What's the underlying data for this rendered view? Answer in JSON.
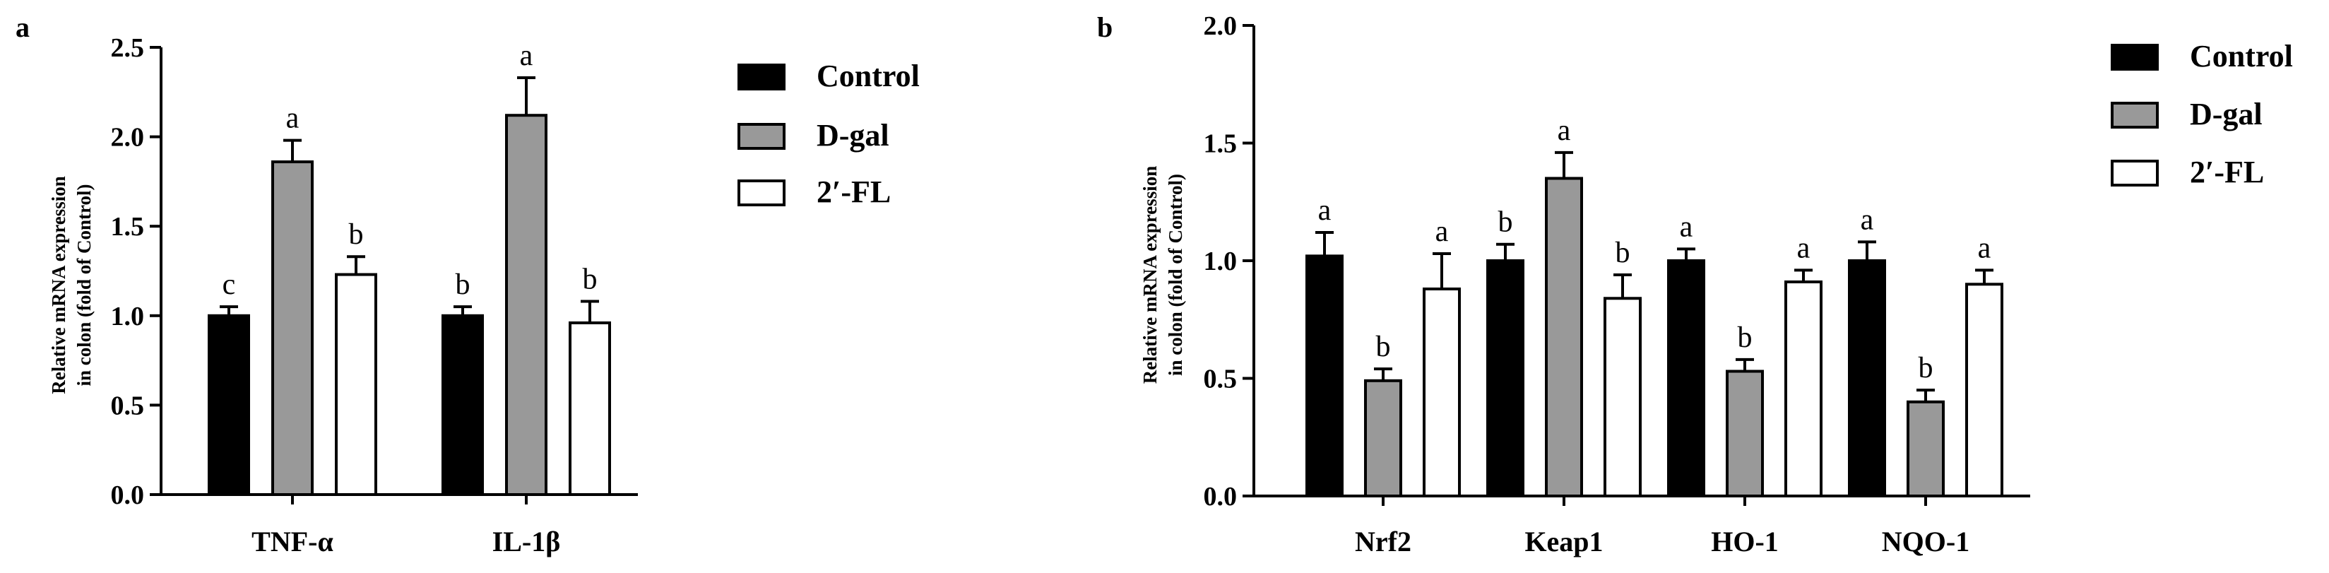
{
  "chart_data": [
    {
      "type": "bar",
      "panel_label": "a",
      "ylabel_lines": [
        "Relative mRNA expression",
        "in colon (fold of Control)"
      ],
      "ylim": [
        0,
        2.5
      ],
      "yticks": [
        "0.0",
        "0.5",
        "1.0",
        "1.5",
        "2.0",
        "2.5"
      ],
      "categories": [
        "TNF-α",
        "IL-1β"
      ],
      "series": [
        {
          "name": "Control",
          "color": "#000000",
          "values": [
            1.0,
            1.0
          ],
          "errors": [
            0.05,
            0.05
          ],
          "letters": [
            "c",
            "b"
          ]
        },
        {
          "name": "D-gal",
          "color": "#999999",
          "values": [
            1.86,
            2.12
          ],
          "errors": [
            0.12,
            0.21
          ],
          "letters": [
            "a",
            "a"
          ]
        },
        {
          "name": "2′-FL",
          "color": "#ffffff",
          "values": [
            1.23,
            0.96
          ],
          "errors": [
            0.1,
            0.12
          ],
          "letters": [
            "b",
            "b"
          ]
        }
      ],
      "legend_position": "right"
    },
    {
      "type": "bar",
      "panel_label": "b",
      "ylabel_lines": [
        "Relative mRNA expression",
        "in colon (fold of Control)"
      ],
      "ylim": [
        0,
        2.0
      ],
      "yticks": [
        "0.0",
        "0.5",
        "1.0",
        "1.5",
        "2.0"
      ],
      "categories": [
        "Nrf2",
        "Keap1",
        "HO-1",
        "NQO-1"
      ],
      "series": [
        {
          "name": "Control",
          "color": "#000000",
          "values": [
            1.02,
            1.0,
            1.0,
            1.0
          ],
          "errors": [
            0.1,
            0.07,
            0.05,
            0.08
          ],
          "letters": [
            "a",
            "b",
            "a",
            "a"
          ]
        },
        {
          "name": "D-gal",
          "color": "#999999",
          "values": [
            0.49,
            1.35,
            0.53,
            0.4
          ],
          "errors": [
            0.05,
            0.11,
            0.05,
            0.05
          ],
          "letters": [
            "b",
            "a",
            "b",
            "b"
          ]
        },
        {
          "name": "2′-FL",
          "color": "#ffffff",
          "values": [
            0.88,
            0.84,
            0.91,
            0.9
          ],
          "errors": [
            0.15,
            0.1,
            0.05,
            0.06
          ],
          "letters": [
            "a",
            "b",
            "a",
            "a"
          ]
        }
      ],
      "legend_position": "right"
    }
  ]
}
